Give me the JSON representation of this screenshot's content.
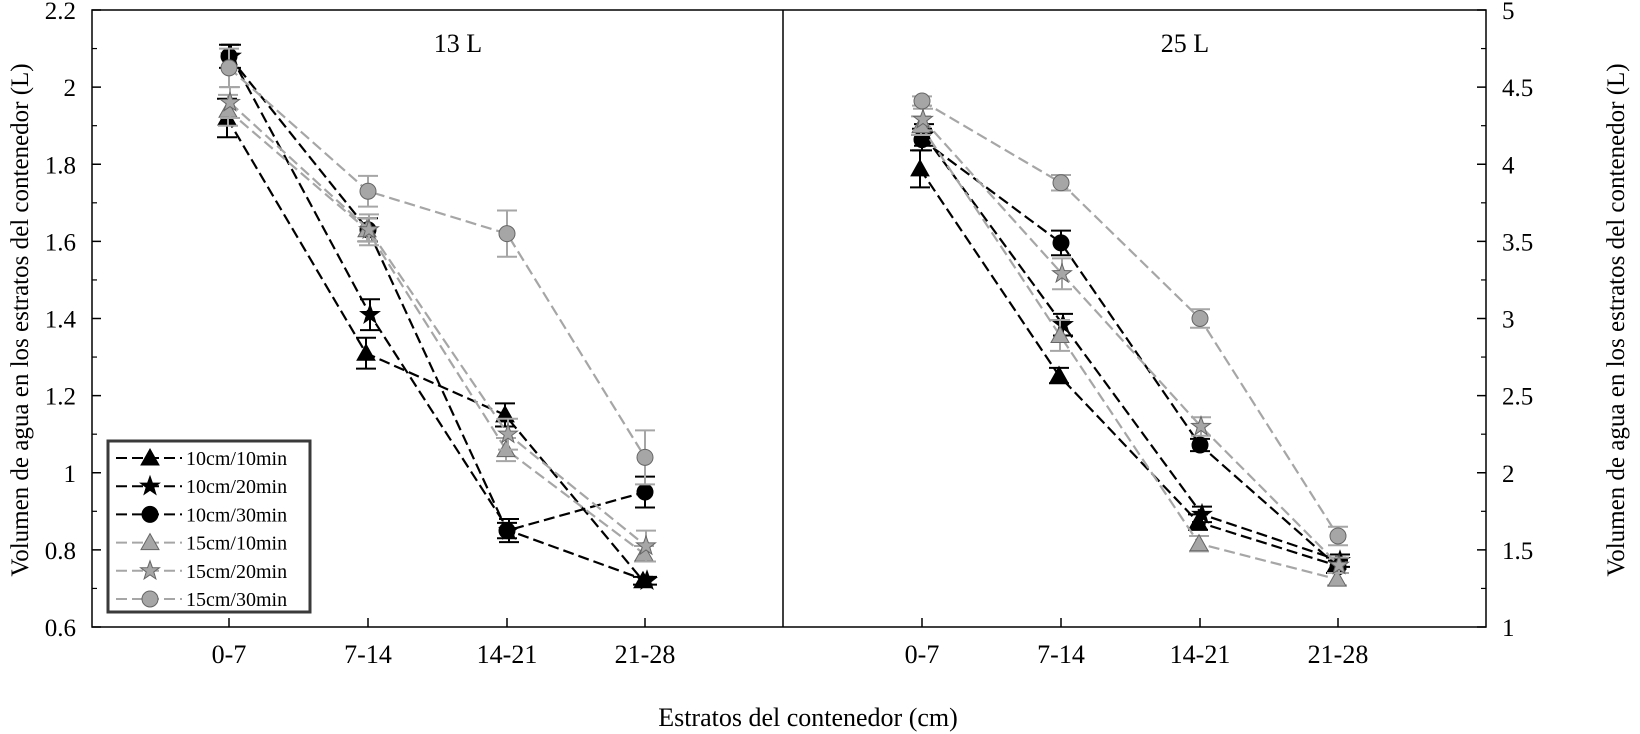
{
  "chart_data": {
    "type": "line",
    "xlabel": "Estratos del contenedor (cm)",
    "categories": [
      "0-7",
      "7-14",
      "14-21",
      "21-28"
    ],
    "legend": {
      "placement": "bottom-left of left panel",
      "entries": [
        {
          "label": "10cm/10min",
          "marker": "triangle",
          "color": "#000000"
        },
        {
          "label": "10cm/20min",
          "marker": "star",
          "color": "#000000"
        },
        {
          "label": "10cm/30min",
          "marker": "circle",
          "color": "#000000"
        },
        {
          "label": "15cm/10min",
          "marker": "triangle",
          "color": "#a6a6a6"
        },
        {
          "label": "15cm/20min",
          "marker": "star",
          "color": "#a6a6a6"
        },
        {
          "label": "15cm/30min",
          "marker": "circle",
          "color": "#a6a6a6"
        }
      ]
    },
    "panels": [
      {
        "title": "13 L",
        "ylabel": "Volumen de agua en los estratos del contenedor (L)",
        "ylim": [
          0.6,
          2.2
        ],
        "yticks": [
          "0.6",
          "0.8",
          "1",
          "1.2",
          "1.4",
          "1.6",
          "1.8",
          "2",
          "2.2"
        ],
        "series": [
          {
            "name": "10cm/10min",
            "values": [
              1.92,
              1.31,
              1.15,
              0.72
            ],
            "errors": [
              0.05,
              0.04,
              0.03,
              0.01
            ]
          },
          {
            "name": "10cm/20min",
            "values": [
              2.08,
              1.41,
              0.85,
              0.72
            ],
            "errors": [
              0.03,
              0.04,
              0.03,
              0.01
            ]
          },
          {
            "name": "10cm/30min",
            "values": [
              2.08,
              1.63,
              0.85,
              0.95
            ],
            "errors": [
              0.03,
              0.03,
              0.02,
              0.04
            ]
          },
          {
            "name": "15cm/10min",
            "values": [
              1.94,
              1.63,
              1.06,
              0.79
            ],
            "errors": [
              0.04,
              0.03,
              0.03,
              0.02
            ]
          },
          {
            "name": "15cm/20min",
            "values": [
              1.96,
              1.63,
              1.1,
              0.81
            ],
            "errors": [
              0.04,
              0.04,
              0.04,
              0.04
            ]
          },
          {
            "name": "15cm/30min",
            "values": [
              2.05,
              1.73,
              1.62,
              1.04
            ],
            "errors": [
              0.05,
              0.04,
              0.06,
              0.07
            ]
          }
        ]
      },
      {
        "title": "25 L",
        "ylabel": "Volumen de agua en los estratos del contenedor (L)",
        "ylim": [
          1,
          5
        ],
        "yticks": [
          "1",
          "1.5",
          "2",
          "2.5",
          "3",
          "3.5",
          "4",
          "4.5",
          "5"
        ],
        "series": [
          {
            "name": "10cm/10min",
            "values": [
              3.97,
              2.63,
              1.68,
              1.4
            ],
            "errors": [
              0.12,
              0.05,
              0.05,
              0.05
            ]
          },
          {
            "name": "10cm/20min",
            "values": [
              4.19,
              2.96,
              1.73,
              1.43
            ],
            "errors": [
              0.07,
              0.07,
              0.05,
              0.04
            ]
          },
          {
            "name": "10cm/30min",
            "values": [
              4.16,
              3.49,
              2.18,
              1.39
            ],
            "errors": [
              0.07,
              0.08,
              0.04,
              0.04
            ]
          },
          {
            "name": "15cm/10min",
            "values": [
              4.25,
              2.89,
              1.54,
              1.31
            ],
            "errors": [
              0.06,
              0.1,
              0.05,
              0.04
            ]
          },
          {
            "name": "15cm/20min",
            "values": [
              4.29,
              3.29,
              2.3,
              1.4
            ],
            "errors": [
              0.07,
              0.1,
              0.06,
              0.05
            ]
          },
          {
            "name": "15cm/30min",
            "values": [
              4.41,
              3.88,
              3.0,
              1.59
            ],
            "errors": [
              0.03,
              0.05,
              0.06,
              0.06
            ]
          }
        ]
      }
    ]
  }
}
